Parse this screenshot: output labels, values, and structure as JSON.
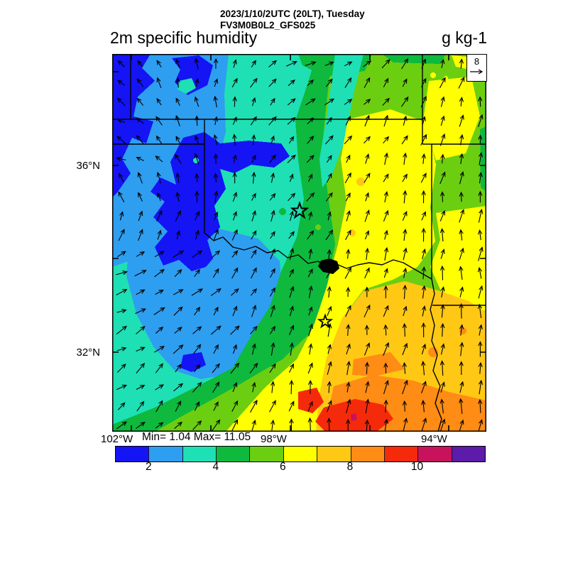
{
  "header": {
    "datetime_line": "2023/1/10/2UTC (20LT), Tuesday",
    "model_line": "FV3M0B0L2_GFS025",
    "field_title": "2m specific humidity",
    "units": "g kg-1"
  },
  "map": {
    "lat_labels": [
      "36°N",
      "32°N"
    ],
    "lon_labels": [
      "102°W",
      "98°W",
      "94°W"
    ],
    "stats": "Min= 1.04 Max= 11.05",
    "reference_vector": {
      "value": "8"
    }
  },
  "colorbar": {
    "tick_labels": [
      "2",
      "4",
      "6",
      "8",
      "10"
    ],
    "colors": [
      "#1414F5",
      "#2E9EF0",
      "#1EE0B4",
      "#0EB93E",
      "#6CCE10",
      "#FFFF00",
      "#FFC814",
      "#FF8C14",
      "#F52A0A",
      "#C8125C",
      "#5C1BA8"
    ]
  },
  "chart_data": {
    "type": "heatmap",
    "title": "2m specific humidity",
    "units": "g kg-1",
    "datetime": "2023/1/10/2UTC (20LT), Tuesday",
    "model": "FV3M0B0L2_GFS025",
    "stats": {
      "min": 1.04,
      "max": 11.05
    },
    "x_axis": {
      "tick_labels": [
        "102°W",
        "98°W",
        "94°W"
      ]
    },
    "y_axis": {
      "tick_labels": [
        "36°N",
        "32°N"
      ]
    },
    "colorbar": {
      "boundaries": [
        1,
        2,
        3,
        4,
        5,
        6,
        7,
        8,
        9,
        10,
        11,
        12
      ],
      "tick_labels": [
        2,
        4,
        6,
        8,
        10
      ],
      "colors": [
        "#1414F5",
        "#2E9EF0",
        "#1EE0B4",
        "#0EB93E",
        "#6CCE10",
        "#FFFF00",
        "#FFC814",
        "#FF8C14",
        "#F52A0A",
        "#C8125C",
        "#5C1BA8"
      ]
    },
    "wind_vectors": {
      "reference_value": 8,
      "style": "arrow-grid"
    },
    "field_summary": "Specific humidity increases from ~1-3 g/kg (blue, northwest) to ~9-11 g/kg (orange-red, southeast); wind arrows rotate from NW-pointing in the northwest to N-pointing in the east and southeast."
  }
}
